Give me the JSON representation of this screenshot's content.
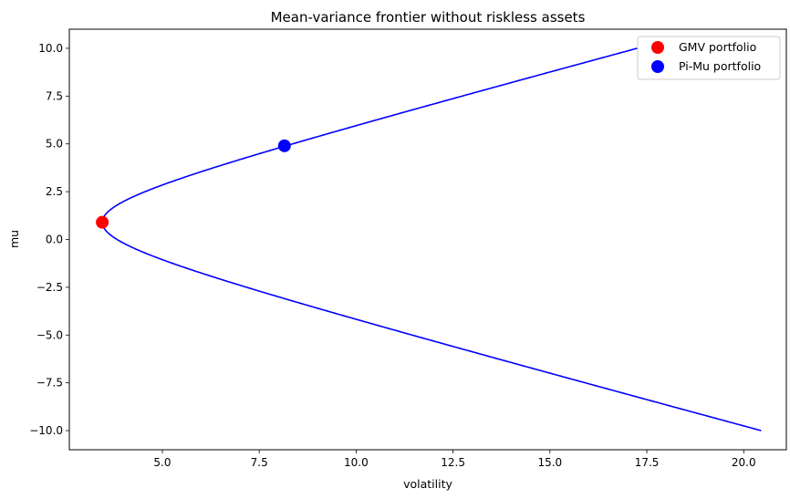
{
  "chart_data": {
    "type": "line",
    "title": "Mean-variance frontier without riskless assets",
    "xlabel": "volatility",
    "ylabel": "mu",
    "xlim": [
      2.6,
      21.1
    ],
    "ylim": [
      -11.0,
      11.0
    ],
    "x_ticks": [
      5.0,
      7.5,
      10.0,
      12.5,
      15.0,
      17.5,
      20.0
    ],
    "x_tick_labels": [
      "5.0",
      "7.5",
      "10.0",
      "12.5",
      "15.0",
      "17.5",
      "20.0"
    ],
    "y_ticks": [
      10.0,
      7.5,
      5.0,
      2.5,
      0.0,
      -2.5,
      -5.0,
      -7.5,
      -10.0
    ],
    "y_tick_labels": [
      "10.0",
      "7.5",
      "5.0",
      "2.5",
      "0.0",
      "−2.5",
      "−5.0",
      "−7.5",
      "−10.0"
    ],
    "grid": false,
    "legend_position": "top-right",
    "frontier": {
      "color": "#0000ff",
      "mu_range": [
        -10.0,
        10.0
      ],
      "gmv_mu": 0.9,
      "gmv_vol": 3.45,
      "vol_at_mu_10": 17.25,
      "vol_at_mu_neg10": 20.45
    },
    "points": [
      {
        "name": "GMV portfolio",
        "x": 3.45,
        "y": 0.9,
        "color": "#ff0000"
      },
      {
        "name": "Pi-Mu portfolio",
        "x": 8.15,
        "y": 4.9,
        "color": "#0000ff"
      }
    ]
  }
}
